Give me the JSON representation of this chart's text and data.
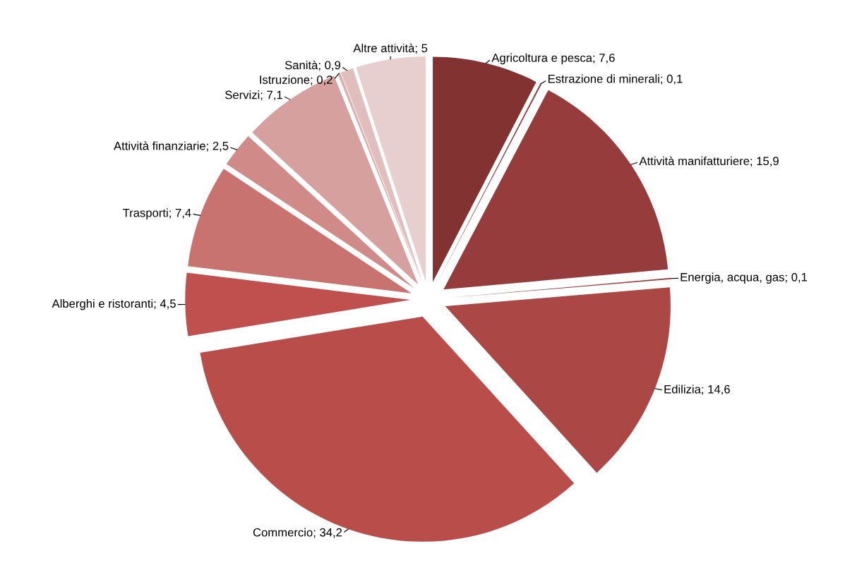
{
  "chart_data": {
    "type": "pie",
    "categories": [
      "Agricoltura e pesca",
      "Estrazione di minerali",
      "Attività manifatturiere",
      "Energia, acqua, gas",
      "Edilizia",
      "Commercio",
      "Alberghi e ristoranti",
      "Trasporti",
      "Attività finanziarie",
      "Servizi",
      "Istruzione",
      "Sanità",
      "Altre attività"
    ],
    "values": [
      7.6,
      0.1,
      15.9,
      0.1,
      14.6,
      34.2,
      4.5,
      7.4,
      2.5,
      7.1,
      0.2,
      0.9,
      5
    ],
    "value_labels": [
      "7,6",
      "0,1",
      "15,9",
      "0,1",
      "14,6",
      "34,2",
      "4,5",
      "7,4",
      "2,5",
      "7,1",
      "0,2",
      "0,9",
      "5"
    ],
    "colors": [
      "#833232",
      "#8b3535",
      "#963c3c",
      "#a04040",
      "#ab4846",
      "#b84d4a",
      "#c0504d",
      "#c87370",
      "#d08a88",
      "#d6a09f",
      "#dbb0af",
      "#e0bebd",
      "#e8cfcf"
    ],
    "legend": false
  }
}
